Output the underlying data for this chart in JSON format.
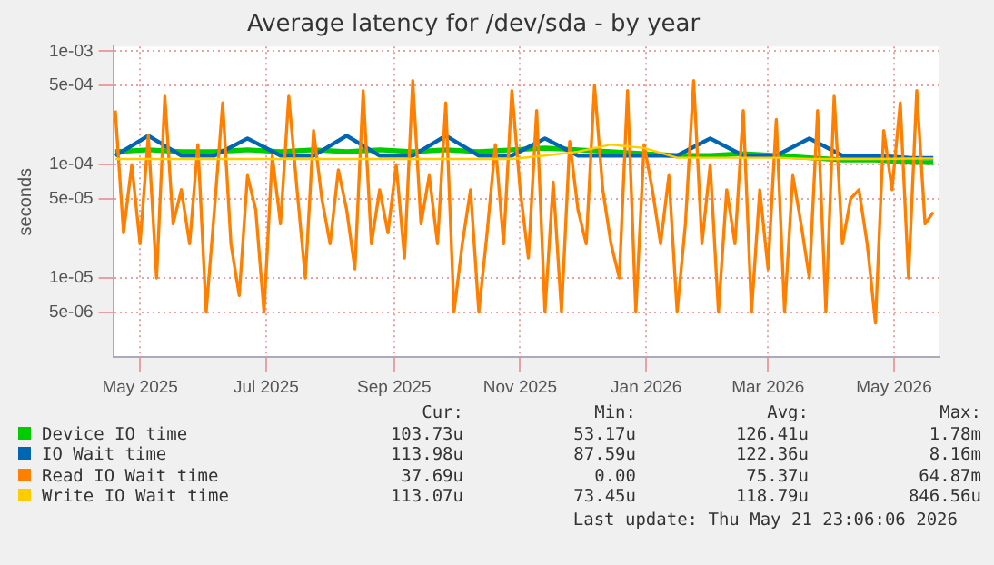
{
  "chart_data": {
    "type": "line",
    "title": "Average latency for /dev/sda - by year",
    "ylabel": "seconds",
    "log": "y",
    "grid": true,
    "legend": "bottom",
    "marker": "none",
    "line_style": "solid",
    "xlim": [
      "2025-04-18",
      "2026-05-23"
    ],
    "xticks": [
      {
        "value": "2025-05-01",
        "label": "May 2025"
      },
      {
        "value": "2025-07-01",
        "label": "Jul 2025"
      },
      {
        "value": "2025-09-01",
        "label": "Sep 2025"
      },
      {
        "value": "2025-11-01",
        "label": "Nov 2025"
      },
      {
        "value": "2026-01-01",
        "label": "Jan 2026"
      },
      {
        "value": "2026-03-01",
        "label": "Mar 2026"
      },
      {
        "value": "2026-05-01",
        "label": "May 2026"
      }
    ],
    "ylim": [
      2e-06,
      0.0011
    ],
    "yticks": [
      {
        "value": 5e-06,
        "label": "5e-06"
      },
      {
        "value": 1e-05,
        "label": "1e-05"
      },
      {
        "value": 5e-05,
        "label": "5e-05"
      },
      {
        "value": 0.0001,
        "label": "1e-04"
      },
      {
        "value": 0.0005,
        "label": "5e-04"
      },
      {
        "value": 0.001,
        "label": "1e-03"
      }
    ],
    "x": [
      "2025-04-19",
      "2025-04-23",
      "2025-04-27",
      "2025-05-01",
      "2025-05-05",
      "2025-05-09",
      "2025-05-13",
      "2025-05-17",
      "2025-05-21",
      "2025-05-25",
      "2025-05-29",
      "2025-06-02",
      "2025-06-06",
      "2025-06-10",
      "2025-06-14",
      "2025-06-18",
      "2025-06-22",
      "2025-06-26",
      "2025-06-30",
      "2025-07-04",
      "2025-07-08",
      "2025-07-12",
      "2025-07-16",
      "2025-07-20",
      "2025-07-24",
      "2025-07-28",
      "2025-08-01",
      "2025-08-05",
      "2025-08-09",
      "2025-08-13",
      "2025-08-17",
      "2025-08-21",
      "2025-08-25",
      "2025-08-29",
      "2025-09-02",
      "2025-09-06",
      "2025-09-10",
      "2025-09-14",
      "2025-09-18",
      "2025-09-22",
      "2025-09-26",
      "2025-09-30",
      "2025-10-04",
      "2025-10-08",
      "2025-10-12",
      "2025-10-16",
      "2025-10-20",
      "2025-10-24",
      "2025-10-28",
      "2025-11-01",
      "2025-11-05",
      "2025-11-09",
      "2025-11-13",
      "2025-11-17",
      "2025-11-21",
      "2025-11-25",
      "2025-11-29",
      "2025-12-03",
      "2025-12-07",
      "2025-12-11",
      "2025-12-15",
      "2025-12-19",
      "2025-12-23",
      "2025-12-27",
      "2025-12-31",
      "2026-01-04",
      "2026-01-08",
      "2026-01-12",
      "2026-01-16",
      "2026-01-20",
      "2026-01-24",
      "2026-01-28",
      "2026-02-01",
      "2026-02-05",
      "2026-02-09",
      "2026-02-13",
      "2026-02-17",
      "2026-02-21",
      "2026-02-25",
      "2026-03-01",
      "2026-03-05",
      "2026-03-09",
      "2026-03-13",
      "2026-03-17",
      "2026-03-21",
      "2026-03-25",
      "2026-03-29",
      "2026-04-02",
      "2026-04-06",
      "2026-04-10",
      "2026-04-14",
      "2026-04-18",
      "2026-04-22",
      "2026-04-26",
      "2026-04-30",
      "2026-05-04",
      "2026-05-08",
      "2026-05-12",
      "2026-05-16",
      "2026-05-20"
    ],
    "series": [
      {
        "name": "Device IO time",
        "color": "#00cc00",
        "x": [
          "2025-04-19",
          "2025-05-05",
          "2025-05-21",
          "2025-06-06",
          "2025-06-22",
          "2025-07-08",
          "2025-07-24",
          "2025-08-09",
          "2025-08-25",
          "2025-09-10",
          "2025-09-26",
          "2025-10-12",
          "2025-10-28",
          "2025-11-13",
          "2025-11-29",
          "2025-12-15",
          "2025-12-31",
          "2026-01-16",
          "2026-02-01",
          "2026-02-17",
          "2026-03-05",
          "2026-03-21",
          "2026-04-06",
          "2026-04-22",
          "2026-05-08",
          "2026-05-20"
        ],
        "values": [
          0.00013,
          0.000135,
          0.00013,
          0.00013,
          0.000135,
          0.00013,
          0.000135,
          0.00013,
          0.000135,
          0.00013,
          0.000135,
          0.00013,
          0.000135,
          0.00014,
          0.000135,
          0.00013,
          0.000125,
          0.00012,
          0.00012,
          0.000125,
          0.00012,
          0.000115,
          0.00011,
          0.00011,
          0.000105,
          0.000104
        ]
      },
      {
        "name": "IO Wait time",
        "color": "#0066b3",
        "x": [
          "2025-04-19",
          "2025-05-05",
          "2025-05-21",
          "2025-06-06",
          "2025-06-22",
          "2025-07-08",
          "2025-07-24",
          "2025-08-09",
          "2025-08-25",
          "2025-09-10",
          "2025-09-26",
          "2025-10-12",
          "2025-10-28",
          "2025-11-13",
          "2025-11-29",
          "2025-12-15",
          "2025-12-31",
          "2026-01-16",
          "2026-02-01",
          "2026-02-17",
          "2026-03-05",
          "2026-03-21",
          "2026-04-06",
          "2026-04-22",
          "2026-05-08",
          "2026-05-20"
        ],
        "values": [
          0.00012,
          0.00018,
          0.00012,
          0.00012,
          0.00017,
          0.00012,
          0.00012,
          0.00018,
          0.00012,
          0.00012,
          0.00018,
          0.00012,
          0.00012,
          0.00017,
          0.00012,
          0.00012,
          0.00012,
          0.00012,
          0.00017,
          0.00012,
          0.00012,
          0.00017,
          0.00012,
          0.00012,
          0.000115,
          0.000114
        ]
      },
      {
        "name": "Read IO Wait time",
        "color": "#ff8000",
        "values": [
          0.0003,
          2.5e-05,
          0.0001,
          2e-05,
          0.00018,
          1e-05,
          0.0004,
          3e-05,
          6e-05,
          2e-05,
          0.00015,
          5e-06,
          4e-05,
          0.00035,
          2e-05,
          7e-06,
          8e-05,
          4e-05,
          5e-06,
          0.00012,
          3e-05,
          0.0004,
          6e-05,
          1e-05,
          0.0002,
          5e-05,
          2e-05,
          9e-05,
          4e-05,
          1.2e-05,
          0.00045,
          2e-05,
          6e-05,
          2.5e-05,
          0.0001,
          1.5e-05,
          0.00055,
          3e-05,
          8e-05,
          2e-05,
          0.00035,
          5e-06,
          2e-05,
          6e-05,
          5e-06,
          2.5e-05,
          0.00015,
          2e-05,
          0.00045,
          6e-05,
          1.5e-05,
          0.0003,
          5e-06,
          7e-05,
          5e-06,
          0.00016,
          4e-05,
          2e-05,
          0.0005,
          6e-05,
          2e-05,
          1e-05,
          0.00045,
          5e-06,
          0.00015,
          6e-05,
          2e-05,
          8e-05,
          5e-06,
          3e-05,
          0.00055,
          2e-05,
          0.0001,
          5e-06,
          6e-05,
          2e-05,
          0.0003,
          5e-06,
          6e-05,
          1.2e-05,
          0.00025,
          5e-06,
          8e-05,
          3e-05,
          1e-05,
          0.0003,
          5e-06,
          0.0004,
          2e-05,
          5e-05,
          6e-05,
          2e-05,
          4e-06,
          0.0002,
          6e-05,
          0.00035,
          1e-05,
          0.00045,
          3e-05,
          3.8e-05
        ]
      },
      {
        "name": "Write IO Wait time",
        "color": "#ffcc00",
        "x": [
          "2025-04-19",
          "2025-05-05",
          "2025-05-21",
          "2025-06-06",
          "2025-06-22",
          "2025-07-08",
          "2025-07-24",
          "2025-08-09",
          "2025-08-25",
          "2025-09-10",
          "2025-09-26",
          "2025-10-12",
          "2025-10-28",
          "2025-11-13",
          "2025-11-29",
          "2025-12-15",
          "2025-12-31",
          "2026-01-16",
          "2026-02-01",
          "2026-02-17",
          "2026-03-05",
          "2026-03-21",
          "2026-04-06",
          "2026-04-22",
          "2026-05-08",
          "2026-05-20"
        ],
        "values": [
          0.000112,
          0.000112,
          0.000112,
          0.000112,
          0.000112,
          0.000112,
          0.000112,
          0.000112,
          0.000112,
          0.000112,
          0.000112,
          0.000112,
          0.000112,
          0.00012,
          0.00013,
          0.00015,
          0.00014,
          0.000115,
          0.000115,
          0.000115,
          0.000115,
          0.000112,
          0.000112,
          0.000112,
          0.000113,
          0.000113
        ]
      }
    ],
    "annotations": [
      "Cur:",
      "Min:",
      "Avg:",
      "Max:",
      "103.73u",
      "53.17u",
      "126.41u",
      "1.78m",
      "113.98u",
      "87.59u",
      "122.36u",
      "8.16m",
      "37.69u",
      "0.00",
      "75.37u",
      "64.87m",
      "113.07u",
      "73.45u",
      "118.79u",
      "846.56u",
      "Last update: Thu May 21 23:06:06 2026"
    ]
  }
}
